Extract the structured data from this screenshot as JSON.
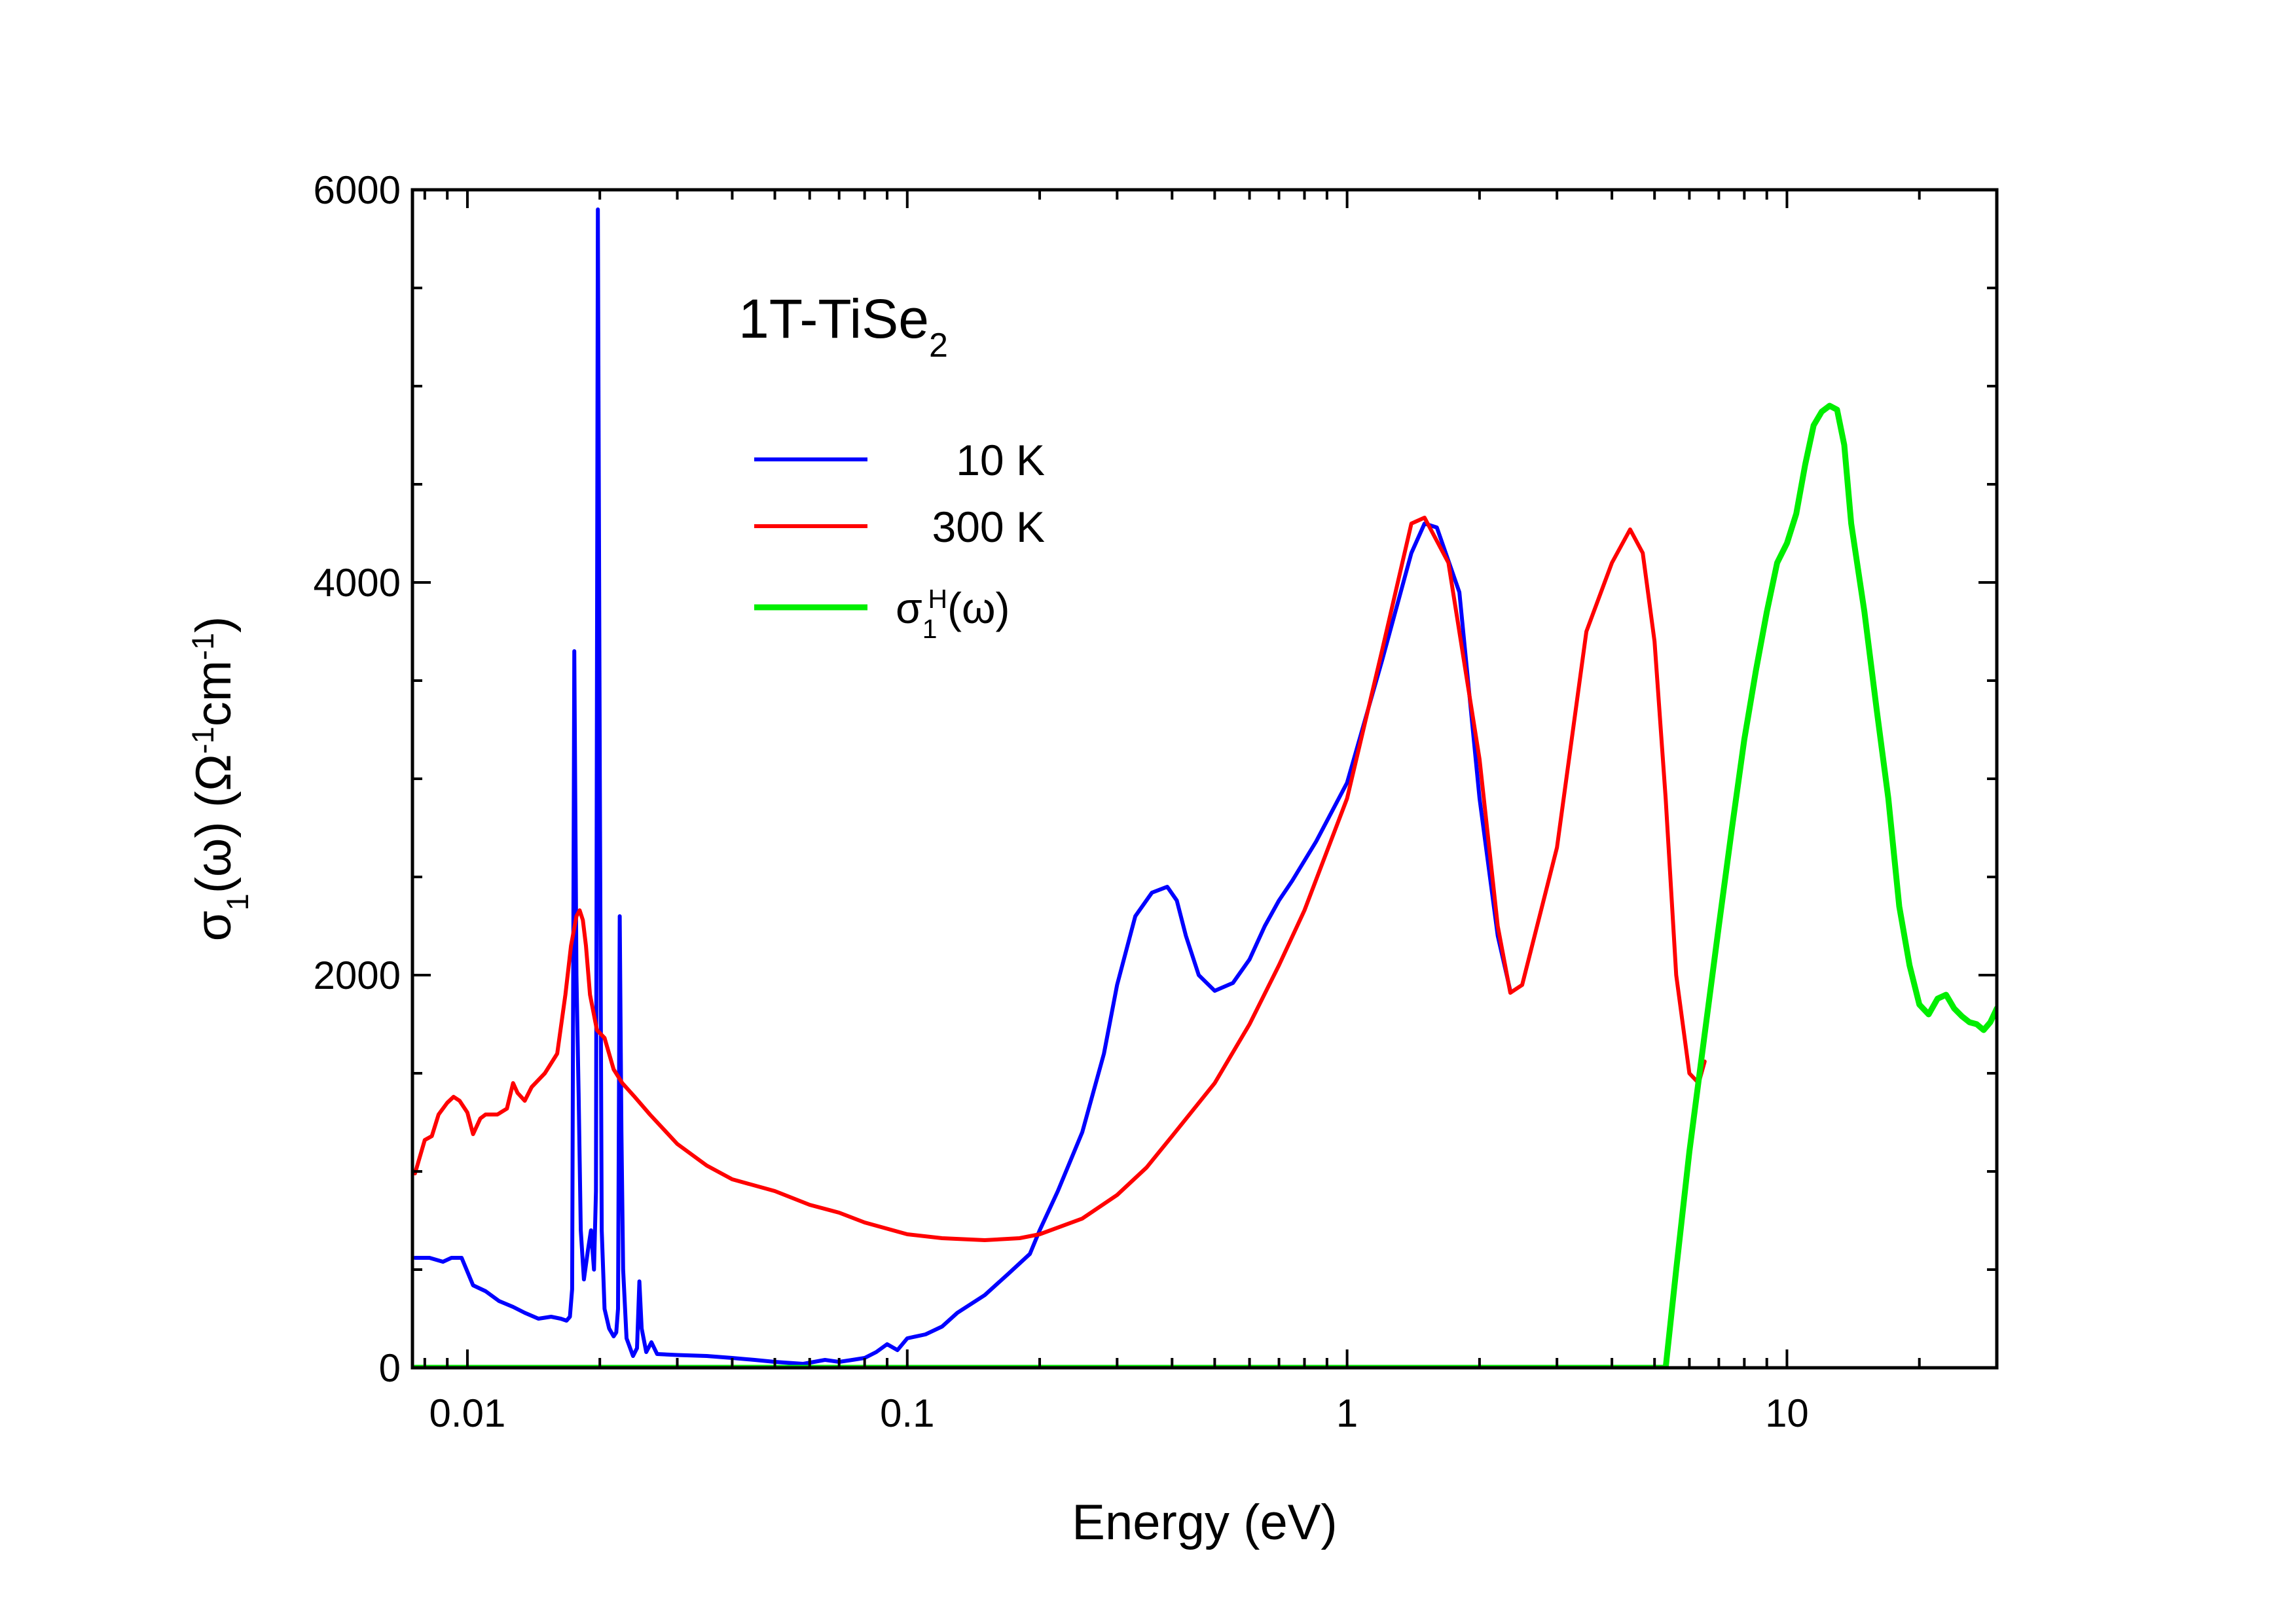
{
  "chart_data": {
    "type": "line",
    "title": "1T-TiSe₂",
    "title_parts": {
      "base": "1T-TiSe",
      "sub": "2"
    },
    "xlabel": "Energy (eV)",
    "ylabel": "σ₁(ω) (Ω⁻¹cm⁻¹)",
    "ylabel_parts": {
      "sigma": "σ",
      "sub1": "1",
      "omega_part": "(ω) (Ω",
      "sup1": "-1",
      "cm": "cm",
      "sup2": "-1",
      "close": ")"
    },
    "x_scale": "log",
    "xlim": [
      0.0075,
      30
    ],
    "ylim": [
      0,
      6000
    ],
    "x_ticks": [
      0.01,
      0.1,
      1,
      10
    ],
    "x_tick_labels": [
      "0.01",
      "0.1",
      "1",
      "10"
    ],
    "y_ticks": [
      0,
      2000,
      4000,
      6000
    ],
    "y_tick_labels": [
      "0",
      "2000",
      "4000",
      "6000"
    ],
    "grid": false,
    "legend_position": "upper-left",
    "series": [
      {
        "name": "10 K",
        "color": "#0000ff",
        "x": [
          0.0076,
          0.0082,
          0.0088,
          0.0092,
          0.0097,
          0.0103,
          0.011,
          0.0118,
          0.0127,
          0.0135,
          0.0145,
          0.0155,
          0.0163,
          0.0168,
          0.0171,
          0.0173,
          0.0175,
          0.0177,
          0.0179,
          0.0181,
          0.0184,
          0.0188,
          0.0191,
          0.0194,
          0.0196,
          0.0198,
          0.02,
          0.0202,
          0.0205,
          0.021,
          0.0215,
          0.0218,
          0.022,
          0.0222,
          0.0224,
          0.0226,
          0.023,
          0.0238,
          0.0243,
          0.0246,
          0.0249,
          0.0255,
          0.0262,
          0.027,
          0.03,
          0.035,
          0.04,
          0.045,
          0.05,
          0.058,
          0.065,
          0.07,
          0.075,
          0.08,
          0.085,
          0.09,
          0.095,
          0.1,
          0.11,
          0.12,
          0.13,
          0.15,
          0.17,
          0.19,
          0.2,
          0.22,
          0.25,
          0.28,
          0.3,
          0.33,
          0.36,
          0.39,
          0.41,
          0.43,
          0.46,
          0.5,
          0.55,
          0.6,
          0.65,
          0.7,
          0.75,
          0.85,
          1.0,
          1.2,
          1.4,
          1.5,
          1.6,
          1.8,
          2.0,
          2.2,
          2.35
        ],
        "values": [
          560,
          560,
          540,
          560,
          560,
          420,
          390,
          340,
          310,
          280,
          250,
          260,
          250,
          240,
          260,
          400,
          3650,
          2000,
          1400,
          700,
          450,
          600,
          700,
          500,
          900,
          5900,
          3000,
          700,
          300,
          200,
          160,
          180,
          300,
          2300,
          1200,
          500,
          150,
          60,
          100,
          440,
          200,
          80,
          130,
          70,
          65,
          60,
          50,
          40,
          30,
          20,
          40,
          30,
          40,
          50,
          80,
          120,
          90,
          150,
          170,
          210,
          280,
          370,
          480,
          580,
          700,
          900,
          1200,
          1600,
          1950,
          2300,
          2420,
          2450,
          2380,
          2200,
          2000,
          1920,
          1960,
          2080,
          2250,
          2380,
          2480,
          2680,
          2980,
          3600,
          4150,
          4300,
          4280,
          3950,
          2900,
          2200,
          1920
        ]
      },
      {
        "name": "300 K",
        "color": "#ff0000",
        "x": [
          0.0076,
          0.008,
          0.0083,
          0.0086,
          0.009,
          0.0093,
          0.0096,
          0.01,
          0.0103,
          0.0107,
          0.011,
          0.0117,
          0.0123,
          0.0127,
          0.013,
          0.0135,
          0.014,
          0.015,
          0.016,
          0.0167,
          0.0172,
          0.0177,
          0.018,
          0.0183,
          0.0186,
          0.019,
          0.0197,
          0.0205,
          0.0215,
          0.0225,
          0.024,
          0.026,
          0.03,
          0.035,
          0.04,
          0.05,
          0.06,
          0.07,
          0.08,
          0.1,
          0.12,
          0.15,
          0.18,
          0.2,
          0.25,
          0.3,
          0.35,
          0.4,
          0.5,
          0.6,
          0.7,
          0.8,
          1.0,
          1.2,
          1.4,
          1.5,
          1.7,
          2.0,
          2.2,
          2.35,
          2.5,
          3.0,
          3.5,
          4.0,
          4.4,
          4.7,
          5.0,
          5.3,
          5.6,
          6.0,
          6.3,
          6.5
        ],
        "values": [
          990,
          1160,
          1180,
          1290,
          1350,
          1380,
          1360,
          1300,
          1190,
          1270,
          1290,
          1290,
          1320,
          1450,
          1400,
          1360,
          1430,
          1500,
          1600,
          1900,
          2150,
          2300,
          2330,
          2280,
          2150,
          1900,
          1720,
          1680,
          1520,
          1450,
          1380,
          1290,
          1140,
          1030,
          960,
          900,
          830,
          790,
          740,
          680,
          660,
          650,
          660,
          680,
          760,
          880,
          1020,
          1180,
          1450,
          1750,
          2050,
          2330,
          2900,
          3650,
          4300,
          4330,
          4100,
          3100,
          2250,
          1910,
          1950,
          2650,
          3750,
          4100,
          4270,
          4150,
          3700,
          2900,
          2000,
          1500,
          1450,
          1560
        ]
      },
      {
        "name": "σ1H(ω)",
        "name_parts": {
          "sigma": "σ",
          "sub": "1",
          "sup": "H",
          "rest": "(ω)"
        },
        "color": "#00ee00",
        "x": [
          0.0076,
          1.0,
          4.0,
          5.3,
          5.6,
          6.0,
          6.5,
          7.0,
          7.5,
          8.0,
          8.5,
          9.0,
          9.5,
          10.0,
          10.5,
          11.0,
          11.5,
          12.0,
          12.5,
          13.0,
          13.5,
          14.0,
          15.0,
          16.0,
          17.0,
          18.0,
          19.0,
          20.0,
          21.0,
          22.0,
          23.0,
          24.0,
          25.0,
          26.0,
          27.0,
          28.0,
          29.0,
          30.0
        ],
        "values": [
          0,
          0,
          0,
          0,
          500,
          1100,
          1700,
          2250,
          2750,
          3200,
          3550,
          3850,
          4100,
          4200,
          4350,
          4600,
          4800,
          4870,
          4900,
          4880,
          4700,
          4300,
          3850,
          3350,
          2900,
          2350,
          2050,
          1850,
          1800,
          1880,
          1900,
          1830,
          1790,
          1760,
          1750,
          1720,
          1760,
          1830
        ]
      }
    ]
  }
}
